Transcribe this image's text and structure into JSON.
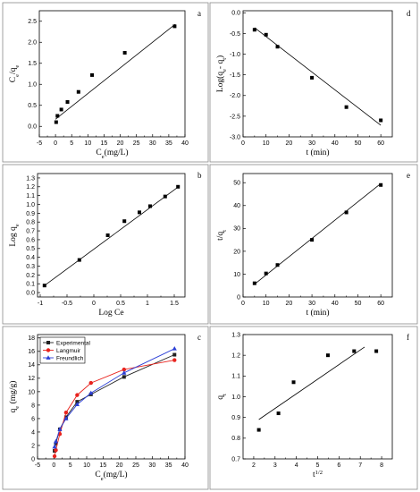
{
  "chart_data": [
    {
      "id": "a",
      "type": "scatter",
      "panel_letter": "a",
      "xlabel_main": "C",
      "xlabel_sub": "e",
      "xlabel_suffix": "(mg/L)",
      "ylabel_text": "Ce/qe",
      "xlim": [
        -5,
        40
      ],
      "ylim": [
        -0.25,
        2.75
      ],
      "xticks": [
        -5,
        0,
        5,
        10,
        15,
        20,
        25,
        30,
        35,
        40
      ],
      "yticks": [
        0.0,
        0.5,
        1.0,
        1.5,
        2.0,
        2.5
      ],
      "ytick_decimals": 1,
      "points": [
        [
          0.2,
          0.1
        ],
        [
          0.6,
          0.25
        ],
        [
          1.8,
          0.4
        ],
        [
          3.7,
          0.58
        ],
        [
          7.1,
          0.82
        ],
        [
          11.3,
          1.22
        ],
        [
          21.4,
          1.75
        ],
        [
          36.8,
          2.38
        ]
      ],
      "fit_line": [
        [
          0,
          0.17
        ],
        [
          37,
          2.43
        ]
      ]
    },
    {
      "id": "b",
      "type": "scatter",
      "panel_letter": "b",
      "xlabel_text": "Log Ce",
      "ylabel_text": "Log qe",
      "xlim": [
        -1.05,
        1.7
      ],
      "ylim": [
        -0.05,
        1.35
      ],
      "xticks": [
        -1.0,
        -0.5,
        0.0,
        0.5,
        1.0,
        1.5
      ],
      "yticks": [
        0.0,
        0.1,
        0.2,
        0.3,
        0.4,
        0.5,
        0.6,
        0.7,
        0.8,
        0.9,
        1.0,
        1.1,
        1.2,
        1.3
      ],
      "ytick_decimals": 1,
      "points": [
        [
          -0.92,
          0.08
        ],
        [
          -0.27,
          0.37
        ],
        [
          0.26,
          0.65
        ],
        [
          0.57,
          0.81
        ],
        [
          0.85,
          0.91
        ],
        [
          1.05,
          0.98
        ],
        [
          1.33,
          1.09
        ],
        [
          1.57,
          1.2
        ]
      ],
      "fit_line": [
        [
          -0.92,
          0.08
        ],
        [
          1.6,
          1.21
        ]
      ]
    },
    {
      "id": "c",
      "type": "line",
      "panel_letter": "c",
      "xlabel_main": "C",
      "xlabel_sub": "e",
      "xlabel_suffix": "(mg/L)",
      "ylabel_main": "q",
      "ylabel_sub": "e",
      "ylabel_suffix": " (mg/g)",
      "xlim": [
        -5,
        40
      ],
      "ylim": [
        0,
        18.5
      ],
      "xticks": [
        -5,
        0,
        5,
        10,
        15,
        20,
        25,
        30,
        35,
        40
      ],
      "yticks": [
        0,
        2,
        4,
        6,
        8,
        10,
        12,
        14,
        16,
        18
      ],
      "ytick_decimals": 0,
      "legend_position": "top-left",
      "series": [
        {
          "name": "Experimental",
          "color": "#222222",
          "marker": "square",
          "x": [
            0.2,
            0.6,
            1.8,
            3.7,
            7.1,
            11.3,
            21.4,
            36.8
          ],
          "y": [
            1.2,
            2.3,
            4.4,
            6.2,
            8.5,
            9.6,
            12.2,
            15.5
          ]
        },
        {
          "name": "Langmuir",
          "color": "#e8231e",
          "marker": "circle",
          "x": [
            0.2,
            0.6,
            1.8,
            3.7,
            7.1,
            11.3,
            21.4,
            36.8
          ],
          "y": [
            0.4,
            1.3,
            3.7,
            6.9,
            9.5,
            11.3,
            13.3,
            14.7
          ]
        },
        {
          "name": "Freundlich",
          "color": "#2b3fd6",
          "marker": "triangle",
          "x": [
            0.2,
            0.6,
            1.8,
            3.7,
            7.1,
            11.3,
            21.4,
            36.8
          ],
          "y": [
            1.8,
            2.6,
            4.4,
            6.0,
            8.1,
            9.8,
            12.8,
            16.4
          ]
        }
      ]
    },
    {
      "id": "d",
      "type": "scatter",
      "panel_letter": "d",
      "xlabel_text": "t (min)",
      "ylabel_text": "Log(qe- qt)",
      "xlim": [
        0,
        65
      ],
      "ylim": [
        -3.0,
        0.05
      ],
      "xticks": [
        0,
        10,
        20,
        30,
        40,
        50,
        60
      ],
      "yticks": [
        -3.0,
        -2.5,
        -2.0,
        -1.5,
        -1.0,
        -0.5,
        0.0
      ],
      "ytick_decimals": 1,
      "points": [
        [
          5,
          -0.41
        ],
        [
          10,
          -0.53
        ],
        [
          15,
          -0.82
        ],
        [
          30,
          -1.57
        ],
        [
          45,
          -2.28
        ],
        [
          60,
          -2.6
        ]
      ],
      "fit_line": [
        [
          5,
          -0.36
        ],
        [
          60,
          -2.72
        ]
      ]
    },
    {
      "id": "e",
      "type": "scatter",
      "panel_letter": "e",
      "xlabel_text": "t (min)",
      "ylabel_text": "t/qt",
      "xlim": [
        0,
        65
      ],
      "ylim": [
        0,
        54
      ],
      "xticks": [
        0,
        10,
        20,
        30,
        40,
        50,
        60
      ],
      "yticks": [
        0,
        10,
        20,
        30,
        40,
        50
      ],
      "ytick_decimals": 0,
      "points": [
        [
          5,
          6
        ],
        [
          10,
          10.3
        ],
        [
          15,
          14
        ],
        [
          30,
          25
        ],
        [
          45,
          37
        ],
        [
          60,
          49
        ]
      ],
      "fit_line": [
        [
          5,
          5.6
        ],
        [
          60,
          49.6
        ]
      ]
    },
    {
      "id": "f",
      "type": "scatter",
      "panel_letter": "f",
      "xlabel_text": "t1/2",
      "ylabel_text": "qt",
      "xlim": [
        1.5,
        8.5
      ],
      "ylim": [
        0.7,
        1.3
      ],
      "xticks": [
        2,
        3,
        4,
        5,
        6,
        7,
        8
      ],
      "yticks": [
        0.7,
        0.8,
        0.9,
        1.0,
        1.1,
        1.2,
        1.3
      ],
      "ytick_decimals": 1,
      "points": [
        [
          2.24,
          0.84
        ],
        [
          3.16,
          0.92
        ],
        [
          3.87,
          1.07
        ],
        [
          5.48,
          1.2
        ],
        [
          6.71,
          1.22
        ],
        [
          7.75,
          1.22
        ]
      ],
      "fit_line": [
        [
          2.24,
          0.89
        ],
        [
          7.2,
          1.24
        ]
      ]
    }
  ]
}
